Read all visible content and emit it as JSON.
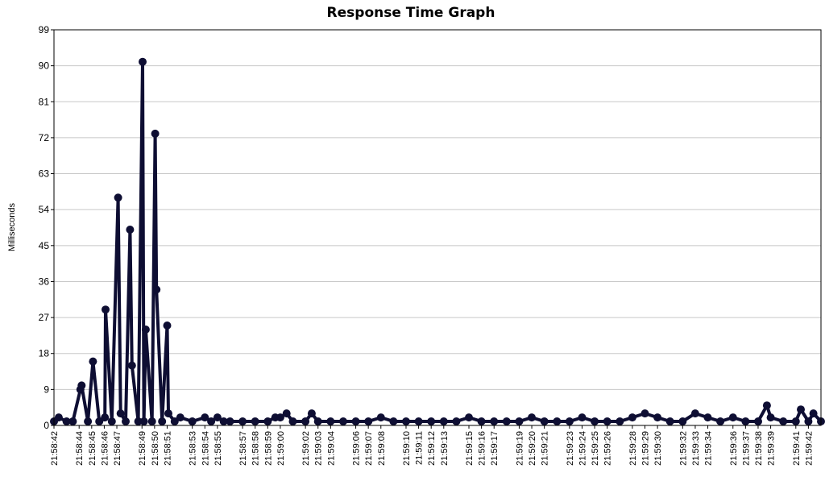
{
  "chart_data": {
    "type": "line",
    "title": "Response Time Graph",
    "xlabel": "",
    "ylabel": "Milliseconds",
    "ylim": [
      0,
      99
    ],
    "yticks": [
      0,
      9,
      18,
      27,
      36,
      45,
      54,
      63,
      72,
      81,
      90,
      99
    ],
    "grid": true,
    "legend": "none",
    "line_color": "#0e0e33",
    "grid_color": "#c8c8c8",
    "xlim": [
      "21:58:42",
      "21:59:43"
    ],
    "xticks": [
      "21:58:42",
      "21:58:44",
      "21:58:45",
      "21:58:46",
      "21:58:47",
      "21:58:49",
      "21:58:50",
      "21:58:51",
      "21:58:53",
      "21:58:54",
      "21:58:55",
      "21:58:57",
      "21:58:58",
      "21:58:59",
      "21:59:00",
      "21:59:02",
      "21:59:03",
      "21:59:04",
      "21:59:06",
      "21:59:07",
      "21:59:08",
      "21:59:10",
      "21:59:11",
      "21:59:12",
      "21:59:13",
      "21:59:15",
      "21:59:16",
      "21:59:17",
      "21:59:19",
      "21:59:20",
      "21:59:21",
      "21:59:23",
      "21:59:24",
      "21:59:25",
      "21:59:26",
      "21:59:28",
      "21:59:29",
      "21:59:30",
      "21:59:32",
      "21:59:33",
      "21:59:34",
      "21:59:36",
      "21:59:37",
      "21:59:38",
      "21:59:39",
      "21:59:41",
      "21:59:42"
    ],
    "series": [
      {
        "x": [
          "21:58:42.00",
          "21:58:42.38",
          "21:58:43.00",
          "21:58:43.50",
          "21:58:44.10",
          "21:58:44.20",
          "21:58:44.70",
          "21:58:45.10",
          "21:58:45.60",
          "21:58:46.05",
          "21:58:46.10",
          "21:58:46.60",
          "21:58:47.10",
          "21:58:47.30",
          "21:58:47.70",
          "21:58:48.05",
          "21:58:48.20",
          "21:58:48.70",
          "21:58:49.05",
          "21:58:49.15",
          "21:58:49.30",
          "21:58:49.80",
          "21:58:50.05",
          "21:58:50.15",
          "21:58:50.60",
          "21:58:51.00",
          "21:58:51.10",
          "21:58:51.60",
          "21:58:52.05",
          "21:58:53.00",
          "21:58:54.00",
          "21:58:54.50",
          "21:58:55.00",
          "21:58:55.50",
          "21:58:56.00",
          "21:58:57.00",
          "21:58:58.00",
          "21:58:59.00",
          "21:58:59.60",
          "21:59:00.00",
          "21:59:00.50",
          "21:59:01.00",
          "21:59:02.00",
          "21:59:02.50",
          "21:59:03.00",
          "21:59:04.00",
          "21:59:05.00",
          "21:59:06.00",
          "21:59:07.00",
          "21:59:08.00",
          "21:59:09.00",
          "21:59:10.00",
          "21:59:11.00",
          "21:59:12.00",
          "21:59:13.00",
          "21:59:14.00",
          "21:59:15.00",
          "21:59:16.00",
          "21:59:17.00",
          "21:59:18.00",
          "21:59:19.00",
          "21:59:20.00",
          "21:59:21.00",
          "21:59:22.00",
          "21:59:23.00",
          "21:59:24.00",
          "21:59:25.00",
          "21:59:26.00",
          "21:59:27.00",
          "21:59:28.00",
          "21:59:29.00",
          "21:59:30.00",
          "21:59:31.00",
          "21:59:32.00",
          "21:59:33.00",
          "21:59:34.00",
          "21:59:35.00",
          "21:59:36.00",
          "21:59:37.00",
          "21:59:38.00",
          "21:59:38.70",
          "21:59:39.00",
          "21:59:40.00",
          "21:59:41.00",
          "21:59:41.40",
          "21:59:42.00",
          "21:59:42.40",
          "21:59:43.00"
        ],
        "values": [
          1,
          2,
          1,
          1,
          9,
          10,
          1,
          16,
          1,
          2,
          29,
          1,
          57,
          3,
          1,
          49,
          15,
          1,
          91,
          1,
          24,
          1,
          73,
          34,
          1,
          25,
          3,
          1,
          2,
          1,
          2,
          1,
          2,
          1,
          1,
          1,
          1,
          1,
          2,
          2,
          3,
          1,
          1,
          3,
          1,
          1,
          1,
          1,
          1,
          2,
          1,
          1,
          1,
          1,
          1,
          1,
          2,
          1,
          1,
          1,
          1,
          2,
          1,
          1,
          1,
          2,
          1,
          1,
          1,
          2,
          3,
          2,
          1,
          1,
          3,
          2,
          1,
          2,
          1,
          1,
          5,
          2,
          1,
          1,
          4,
          1,
          3,
          1
        ]
      }
    ]
  }
}
